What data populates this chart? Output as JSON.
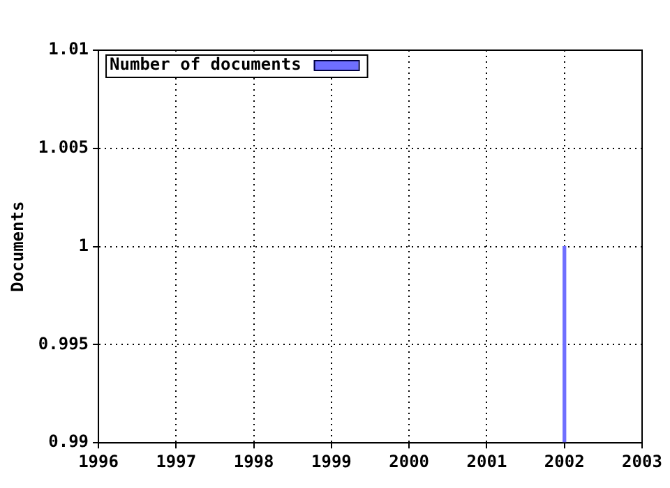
{
  "chart_data": {
    "type": "bar",
    "ylabel": "Documents",
    "x": [
      2002
    ],
    "xlim": [
      1996,
      2003
    ],
    "xticks": [
      1996,
      1997,
      1998,
      1999,
      2000,
      2001,
      2002,
      2003
    ],
    "series": [
      {
        "name": "Number of documents",
        "color": "#6f6fff",
        "values": [
          1
        ]
      }
    ],
    "ylim": [
      0.99,
      1.01
    ],
    "yticks": [
      0.99,
      0.995,
      1,
      1.005,
      1.01
    ],
    "grid": true,
    "legend": "top left"
  }
}
